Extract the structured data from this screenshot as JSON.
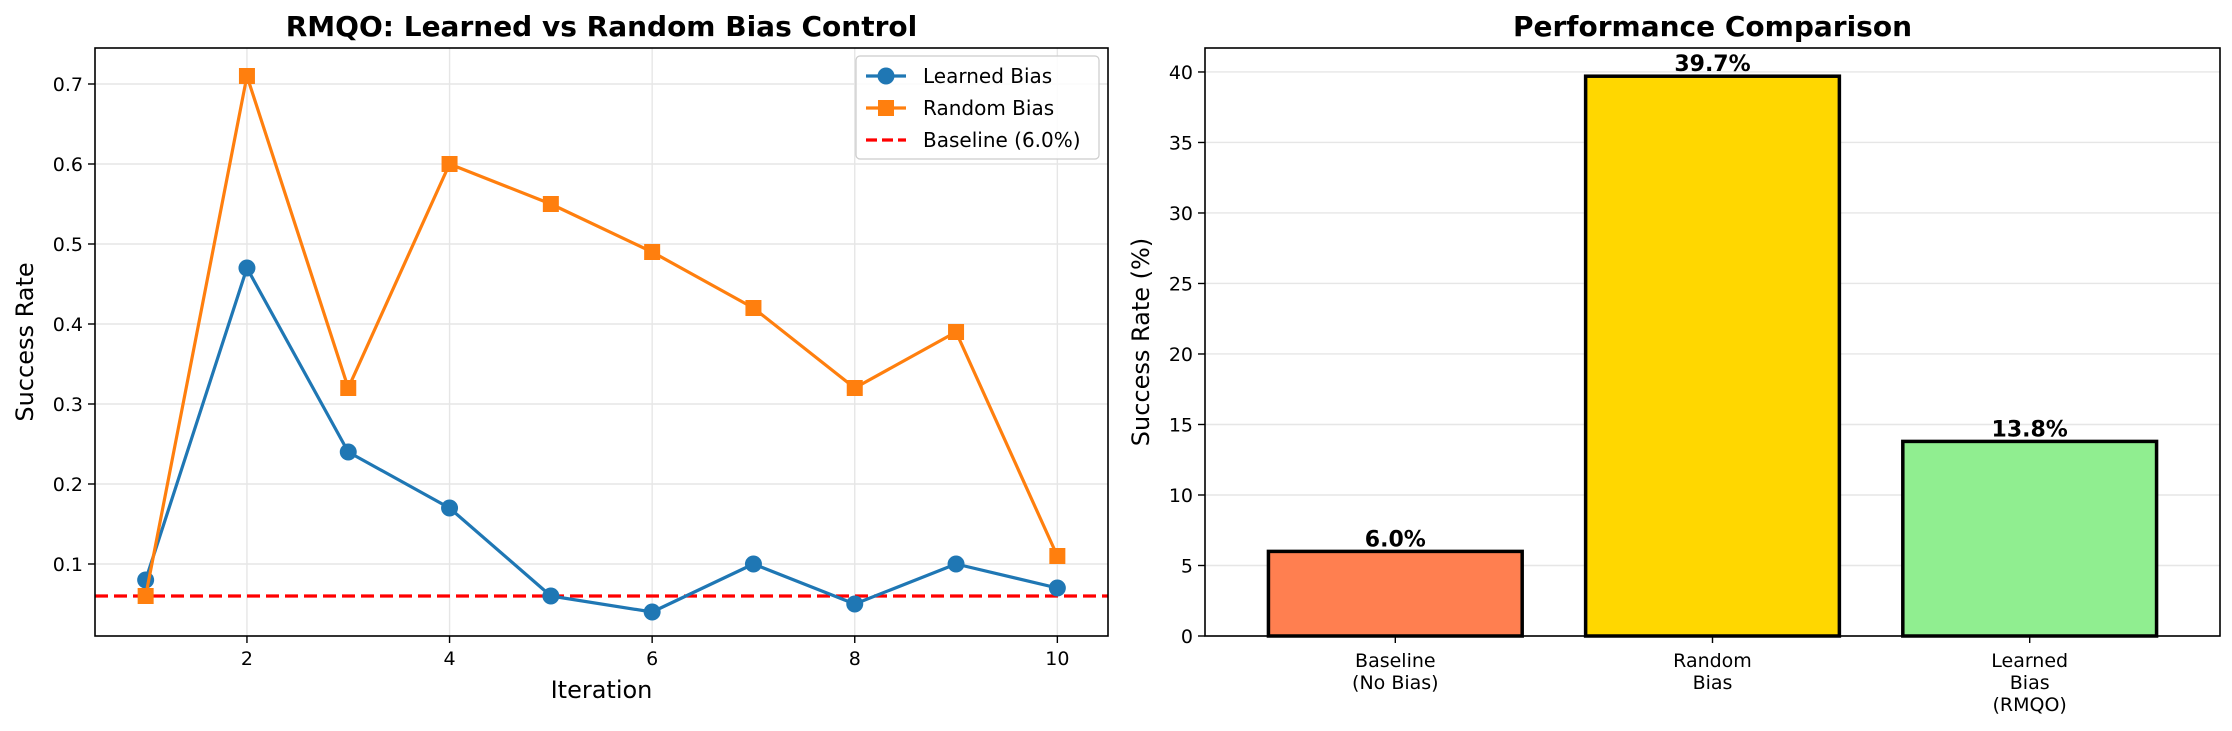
{
  "chart_data": [
    {
      "type": "line",
      "title": "RMQO: Learned vs Random Bias Control",
      "xlabel": "Iteration",
      "ylabel": "Success Rate",
      "xlim": [
        0.5,
        10.5
      ],
      "ylim": [
        0.01,
        0.745
      ],
      "xticks": [
        2,
        4,
        6,
        8,
        10
      ],
      "yticks": [
        0.1,
        0.2,
        0.3,
        0.4,
        0.5,
        0.6,
        0.7
      ],
      "grid": true,
      "legend_position": "top-right",
      "x": [
        1,
        2,
        3,
        4,
        5,
        6,
        7,
        8,
        9,
        10
      ],
      "series": [
        {
          "name": "Learned Bias",
          "color": "#1f77b4",
          "marker": "circle",
          "values": [
            0.08,
            0.47,
            0.24,
            0.17,
            0.06,
            0.04,
            0.1,
            0.05,
            0.1,
            0.07
          ]
        },
        {
          "name": "Random Bias",
          "color": "#ff7f0e",
          "marker": "square",
          "values": [
            0.06,
            0.71,
            0.32,
            0.6,
            0.55,
            0.49,
            0.42,
            0.32,
            0.39,
            0.11
          ]
        }
      ],
      "reference_line": {
        "name": "Baseline (6.0%)",
        "value": 0.06,
        "color": "#ff0000",
        "style": "dashed"
      }
    },
    {
      "type": "bar",
      "title": "Performance Comparison",
      "xlabel": "",
      "ylabel": "Success Rate (%)",
      "ylim": [
        0,
        41.7
      ],
      "yticks": [
        0,
        5,
        10,
        15,
        20,
        25,
        30,
        35,
        40
      ],
      "grid": true,
      "categories": [
        [
          "Baseline",
          "(No Bias)"
        ],
        [
          "Random",
          "Bias"
        ],
        [
          "Learned",
          "Bias",
          "(RMQO)"
        ]
      ],
      "values": [
        6.0,
        39.7,
        13.8
      ],
      "value_labels": [
        "6.0%",
        "39.7%",
        "13.8%"
      ],
      "colors": [
        "#ff7f50",
        "#ffd700",
        "#90ee90"
      ]
    }
  ]
}
